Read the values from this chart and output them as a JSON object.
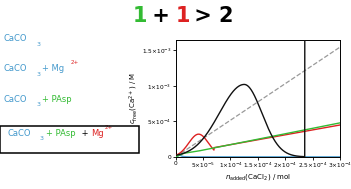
{
  "colors": {
    "blue": "#4499cc",
    "red": "#dd2222",
    "green": "#33bb33",
    "black": "#111111",
    "dashed": "#999999"
  },
  "xlim": [
    0,
    0.0003
  ],
  "ylim": [
    0,
    0.00165
  ],
  "xticks": [
    0,
    5e-05,
    0.0001,
    0.00015,
    0.0002,
    0.00025,
    0.0003
  ],
  "yticks": [
    0,
    0.0005,
    0.001,
    0.0015
  ],
  "background": "#ffffff",
  "title_green": "1",
  "title_plus": " + ",
  "title_red": "1",
  "title_rest": " > 2",
  "title_fontsize": 15
}
